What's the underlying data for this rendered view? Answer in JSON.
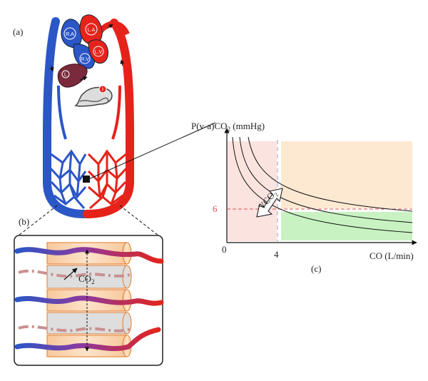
{
  "panels": {
    "a": "(a)",
    "b": "(b)",
    "c": "(c)"
  },
  "organs": {
    "ra": "R.A",
    "la": "L.A",
    "rv": "R.V",
    "lv": "L.V",
    "liver": "L",
    "intestine": "I"
  },
  "inset_b": {
    "co2_label": "CO",
    "co2_sub": "2"
  },
  "graph": {
    "y_label": "P(v-a)CO",
    "y_sub": "2",
    "y_unit": " (mmHg)",
    "x_label": "CO (L/min)",
    "origin": "0",
    "x_threshold": "4",
    "y_threshold": "6",
    "vco2_label": "VCO",
    "vco2_sub": "2"
  },
  "colors": {
    "venous": "#2b56c6",
    "arterial": "#e5231b",
    "threshold": "#d9534f",
    "zone_red": "#fbe3e0",
    "zone_orange": "#fde9d2",
    "zone_green": "#c9f2c2",
    "cylinder": "#fad7b5"
  }
}
